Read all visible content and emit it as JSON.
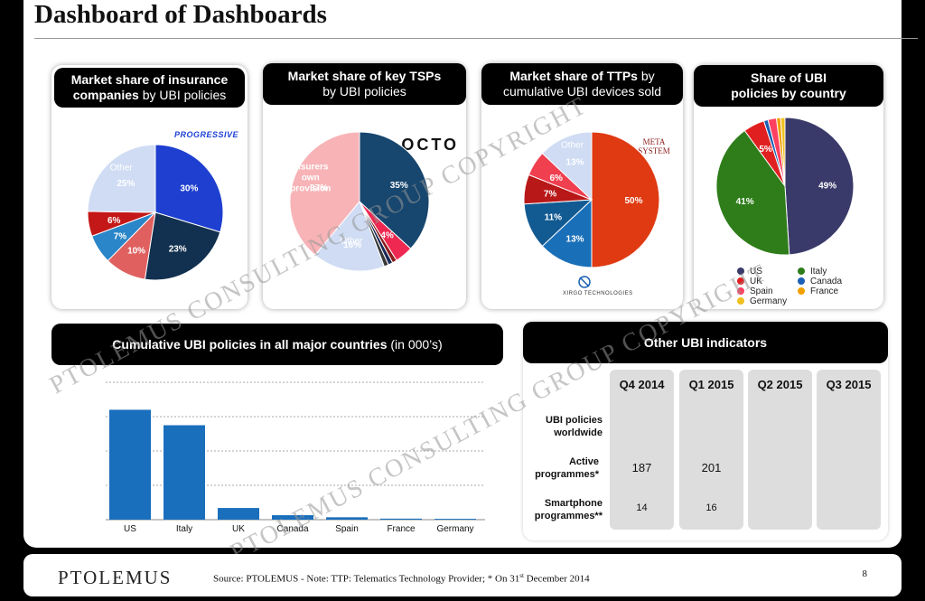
{
  "title": "Dashboard of Dashboards",
  "panels": {
    "insurers": {
      "head_bold": "Market share of insurance companies",
      "head_plain": "by UBI policies",
      "logo": "PROGRESSIVE",
      "logo_color": "#1c3fd4"
    },
    "tsps": {
      "head_bold": "Market share of key TSPs",
      "head_plain": "by UBI policies",
      "logo": "OCTO"
    },
    "ttps": {
      "head_bold": "Market share of TTPs",
      "head_plain_1": "by",
      "head_plain_2": "cumulative UBI devices sold",
      "logo_top": "META SYSTEM",
      "logo_bottom": "XIRGO TECHNOLOGIES"
    },
    "countries": {
      "head_bold": "Share of UBI policies by country",
      "legend": [
        {
          "label": "US",
          "color": "#3a3a6a"
        },
        {
          "label": "Italy",
          "color": "#2e7d1a"
        },
        {
          "label": "UK",
          "color": "#e02020"
        },
        {
          "label": "Canada",
          "color": "#1a5fb4"
        },
        {
          "label": "Spain",
          "color": "#ff4060"
        },
        {
          "label": "France",
          "color": "#f0a000"
        },
        {
          "label": "Germany",
          "color": "#f0c020"
        }
      ]
    },
    "cumulative": {
      "head_bold": "Cumulative UBI policies in all major countries",
      "head_plain": "(in 000’s)"
    },
    "indicators": {
      "head_bold": "Other UBI indicators",
      "columns": [
        "Q4 2014",
        "Q1 2015",
        "Q2 2015",
        "Q3 2015"
      ],
      "rows": [
        {
          "label_1": "UBI policies",
          "label_2": "worldwide",
          "values": [
            "",
            "",
            "",
            ""
          ]
        },
        {
          "label_1": "Active",
          "label_2": "programmes*",
          "values": [
            "187",
            "201",
            "",
            ""
          ]
        },
        {
          "label_1": "Smartphone",
          "label_2": "programmes**",
          "values": [
            "14",
            "16",
            "",
            ""
          ]
        }
      ]
    }
  },
  "chart_data": [
    {
      "type": "pie",
      "title": "Market share of insurance companies by UBI policies",
      "slices": [
        {
          "label": "",
          "value": 30,
          "text": "30%",
          "color": "#1e3fcf"
        },
        {
          "label": "",
          "value": 23,
          "text": "23%",
          "color": "#12304f"
        },
        {
          "label": "",
          "value": 10,
          "text": "10%",
          "color": "#e06060"
        },
        {
          "label": "",
          "value": 7,
          "text": "7%",
          "color": "#2a86c8"
        },
        {
          "label": "",
          "value": 6,
          "text": "6%",
          "color": "#c41818"
        },
        {
          "label": "Other",
          "value": 25,
          "text": "25%",
          "color": "#cfdcf3"
        }
      ]
    },
    {
      "type": "pie",
      "title": "Market share of key TSPs by UBI policies",
      "slices": [
        {
          "label": "",
          "value": 35,
          "text": "35%",
          "color": "#17466e"
        },
        {
          "label": "",
          "value": 4,
          "text": "4%",
          "color": "#ee2850"
        },
        {
          "label": "",
          "value": 1,
          "text": "",
          "color": "#8b1c1c"
        },
        {
          "label": "",
          "value": 1,
          "text": "",
          "color": "#1a2a55"
        },
        {
          "label": "",
          "value": 1,
          "text": "",
          "color": "#3a3a3a"
        },
        {
          "label": "Other",
          "value": 16,
          "text": "16%",
          "color": "#cfdcf3"
        },
        {
          "label": "Insurers own provision",
          "value": 37,
          "text": "37%",
          "color": "#f7b3b6"
        }
      ]
    },
    {
      "type": "pie",
      "title": "Market share of TTPs by cumulative UBI devices sold",
      "slices": [
        {
          "label": "",
          "value": 50,
          "text": "50%",
          "color": "#e03a12"
        },
        {
          "label": "",
          "value": 13,
          "text": "13%",
          "color": "#1a70b8"
        },
        {
          "label": "",
          "value": 11,
          "text": "11%",
          "color": "#125a92"
        },
        {
          "label": "",
          "value": 7,
          "text": "7%",
          "color": "#b81818"
        },
        {
          "label": "",
          "value": 6,
          "text": "6%",
          "color": "#f04050"
        },
        {
          "label": "Other",
          "value": 13,
          "text": "13%",
          "color": "#cfdcf3"
        }
      ]
    },
    {
      "type": "pie",
      "title": "Share of UBI policies by country",
      "slices": [
        {
          "label": "US",
          "value": 49,
          "text": "49%",
          "color": "#3a3a6a"
        },
        {
          "label": "Italy",
          "value": 41,
          "text": "41%",
          "color": "#2e7d1a"
        },
        {
          "label": "UK",
          "value": 5,
          "text": "5%",
          "color": "#e02020"
        },
        {
          "label": "Canada",
          "value": 1,
          "text": "",
          "color": "#1a5fb4"
        },
        {
          "label": "Spain",
          "value": 2,
          "text": "",
          "color": "#ff4060"
        },
        {
          "label": "France",
          "value": 1,
          "text": "",
          "color": "#f0a000"
        },
        {
          "label": "Germany",
          "value": 1,
          "text": "",
          "color": "#f0c020"
        }
      ]
    },
    {
      "type": "bar",
      "title": "Cumulative UBI policies in all major countries (in 000’s)",
      "categories": [
        "US",
        "Italy",
        "UK",
        "Canada",
        "Spain",
        "France",
        "Germany"
      ],
      "values": [
        3200,
        2750,
        340,
        130,
        70,
        30,
        25
      ],
      "ylim": [
        0,
        4000
      ],
      "grid": true,
      "color": "#1a6fbd"
    }
  ],
  "watermark": {
    "line_1": "PTOLEMUS CONSULTING GROUP COPYRIGHT",
    "line_2": "PTOLEMUS CONSULTING GROUP COPYRIGHT",
    "line_3": "PTOLEMUS CONSULTING GROUP COPYRIGHT"
  },
  "footer": {
    "logo": "PTOLEMUS",
    "note_1": "Source: PTOLEMUS - Note: TTP: Telematics Technology Provider; * On 31",
    "note_sup": "st",
    "note_2": " December 2014",
    "page": "8"
  }
}
